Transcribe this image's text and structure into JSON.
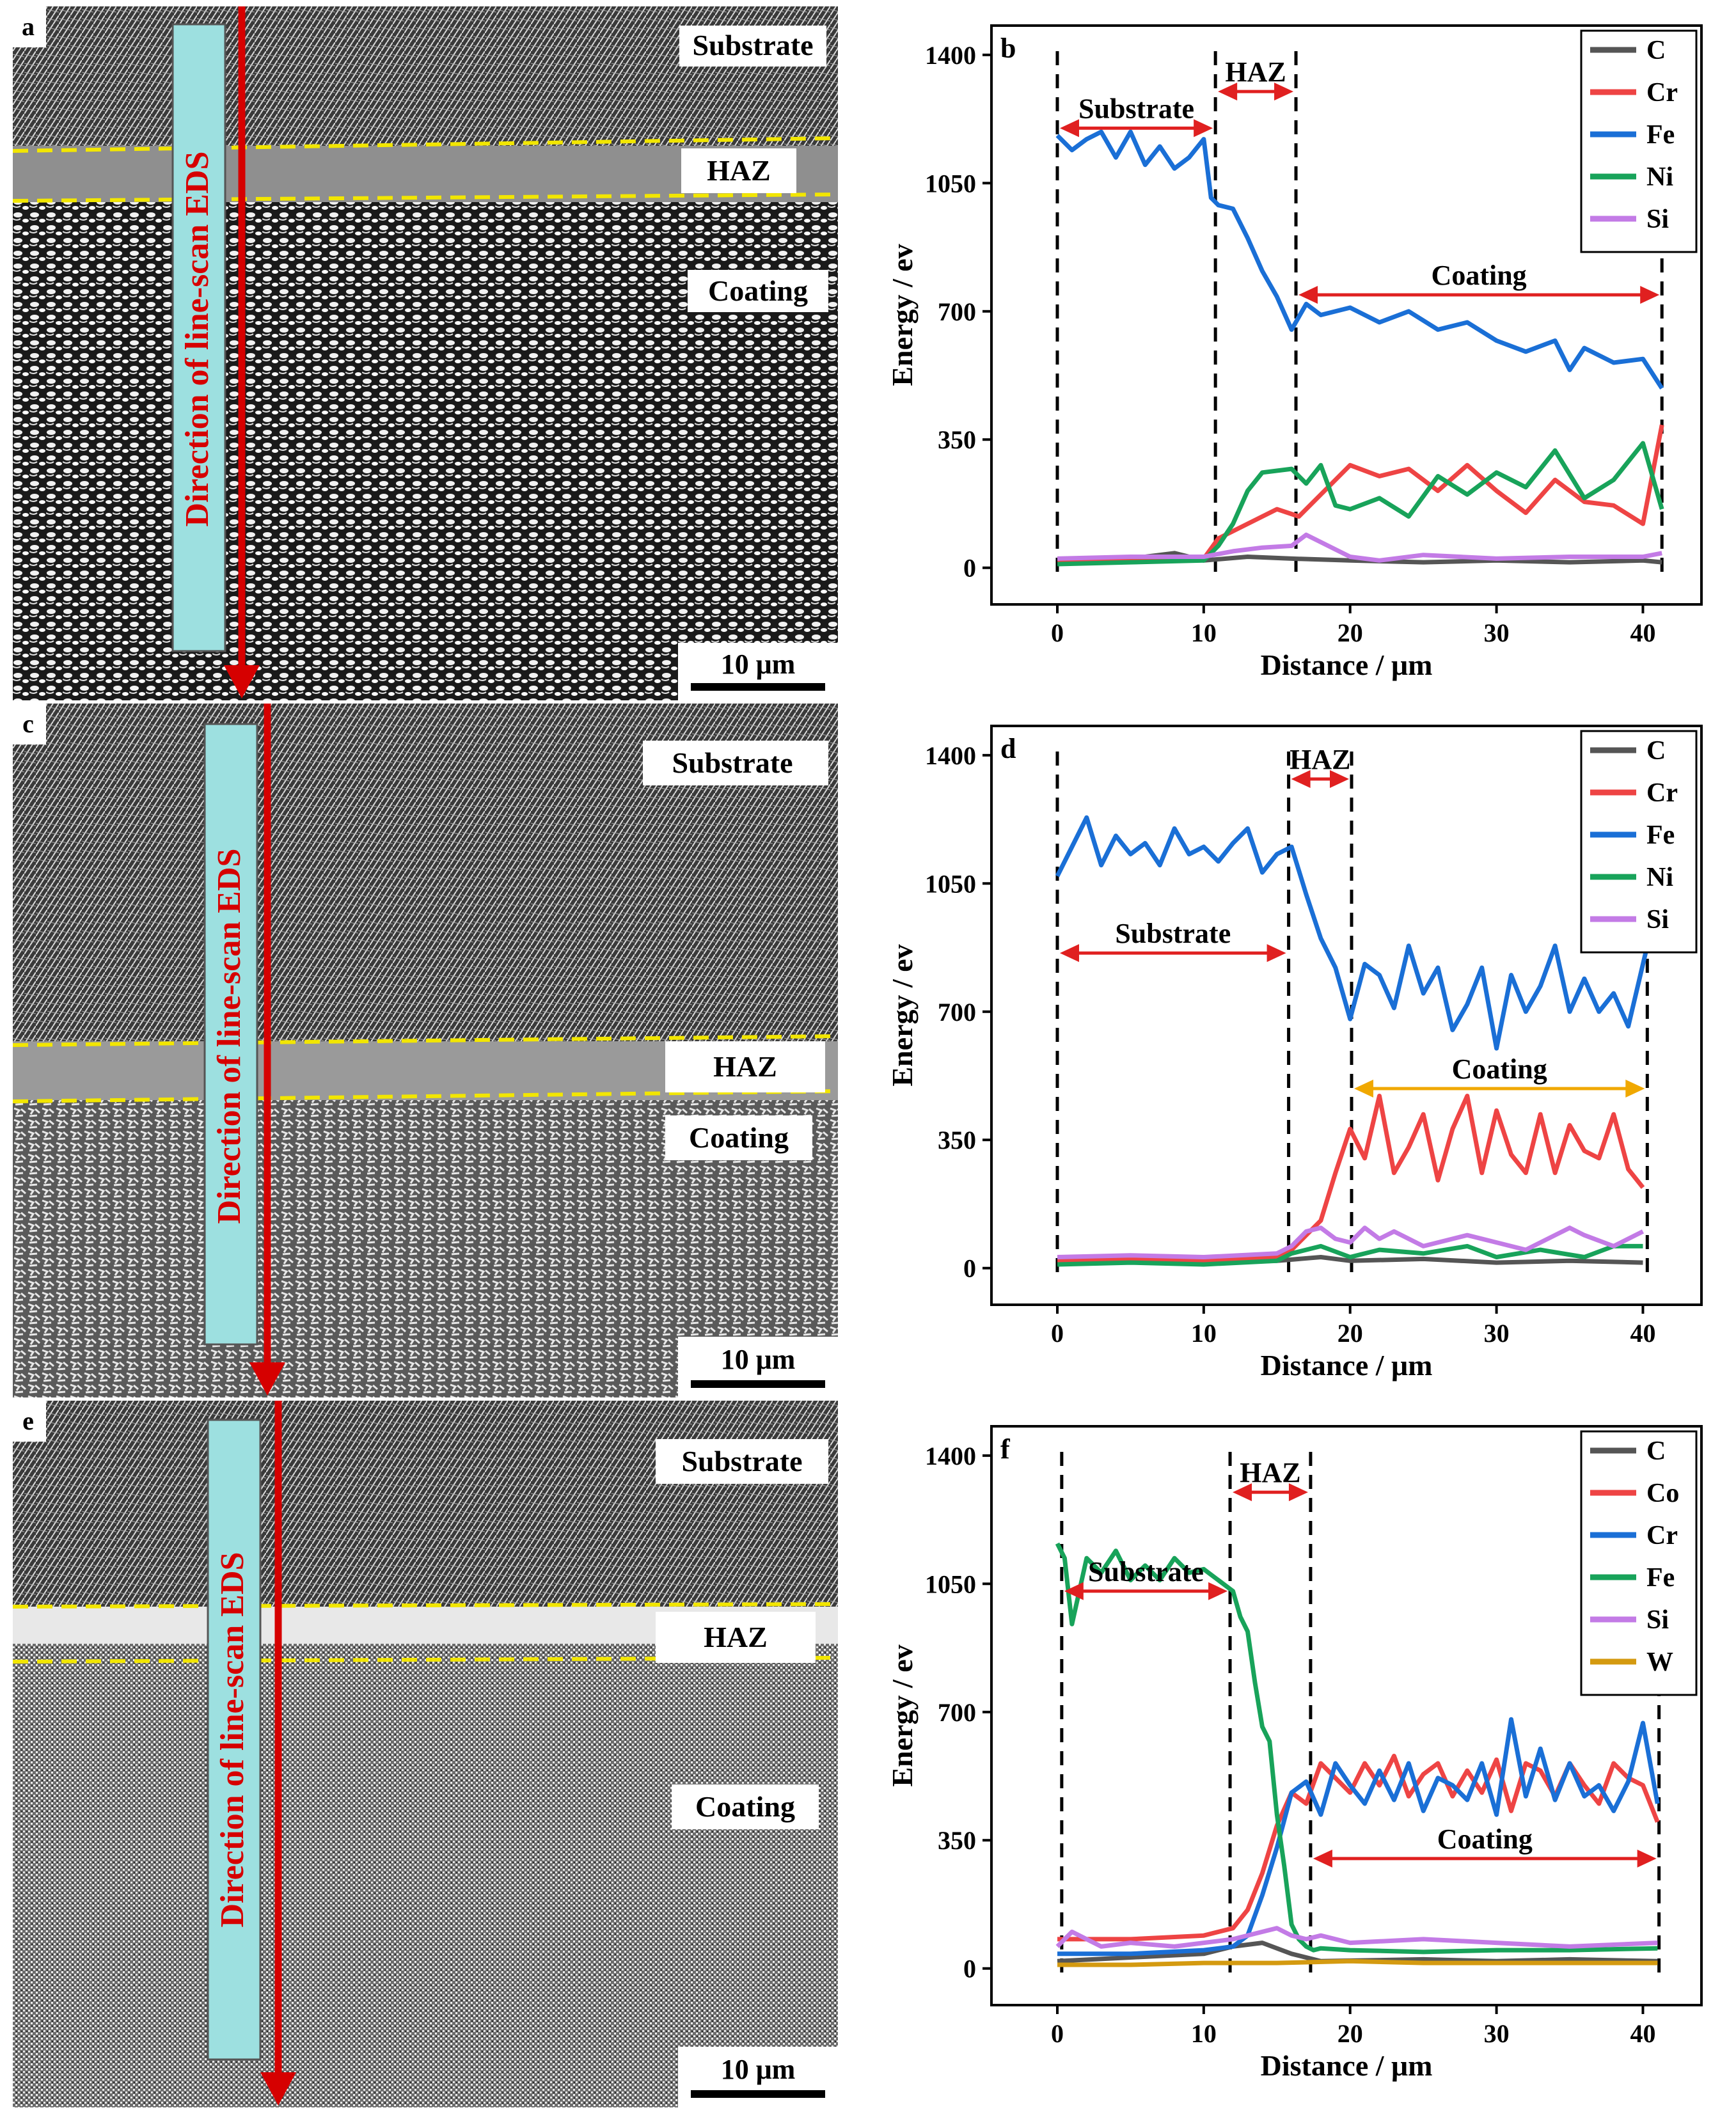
{
  "micrographs": [
    {
      "panel": "a",
      "top_label": "Substrate",
      "mid_label": "HAZ",
      "bot_label": "Coating",
      "scan_label": "Direction of line-scan EDS",
      "scale_text": "10 μm"
    },
    {
      "panel": "c",
      "top_label": "Substrate",
      "mid_label": "HAZ",
      "bot_label": "Coating",
      "scan_label": "Direction of line-scan EDS",
      "scale_text": "10 μm"
    },
    {
      "panel": "e",
      "top_label": "Substrate",
      "mid_label": "HAZ",
      "bot_label": "Coating",
      "scan_label": "Direction of line-scan EDS",
      "scale_text": "10 μm"
    }
  ],
  "colors": {
    "C": "#555555",
    "Cr": "#ee4444",
    "Fe": "#1a6fd6",
    "Ni": "#18a35a",
    "Si": "#c37be6",
    "Co": "#ee4444",
    "Cr_f": "#1a6fd6",
    "Fe_f": "#18a35a",
    "W": "#d49a10",
    "arrow_red": "#e02020",
    "arrow_orange": "#f0a800",
    "scan_arrow": "#d60000",
    "scan_box": "#9de0e0",
    "haz_line": "#f2e600"
  },
  "chart_data": [
    {
      "panel": "b",
      "type": "line",
      "xlabel": "Distance / μm",
      "ylabel": "Energy / ev",
      "xlim": [
        -4.5,
        44
      ],
      "ylim": [
        -100,
        1480
      ],
      "xticks": [
        0,
        10,
        20,
        30,
        40
      ],
      "yticks": [
        0,
        350,
        700,
        1050,
        1400
      ],
      "dividers": [
        0,
        10.8,
        16.3,
        41.3
      ],
      "annotations": [
        {
          "text": "Substrate",
          "x1": 0,
          "x2": 10.8,
          "y": 1200,
          "color": "#e02020"
        },
        {
          "text": "HAZ",
          "x1": 10.8,
          "x2": 16.3,
          "y": 1300,
          "color": "#e02020"
        },
        {
          "text": "Coating",
          "x1": 16.3,
          "x2": 41.3,
          "y": 745,
          "color": "#e02020"
        }
      ],
      "legend": "top-right",
      "series": [
        {
          "name": "C",
          "color": "#555555",
          "x": [
            0,
            5,
            8,
            10,
            13,
            16,
            20,
            25,
            30,
            35,
            40,
            41.3
          ],
          "y": [
            15,
            25,
            40,
            20,
            30,
            25,
            20,
            15,
            20,
            15,
            20,
            15
          ]
        },
        {
          "name": "Cr",
          "color": "#ee4444",
          "x": [
            0,
            5,
            10,
            11,
            13,
            15,
            16.5,
            18,
            20,
            22,
            24,
            26,
            28,
            30,
            32,
            34,
            36,
            38,
            40,
            41.3
          ],
          "y": [
            20,
            20,
            25,
            80,
            120,
            160,
            140,
            200,
            280,
            250,
            270,
            210,
            280,
            210,
            150,
            240,
            180,
            170,
            120,
            390
          ]
        },
        {
          "name": "Fe",
          "color": "#1a6fd6",
          "x": [
            0,
            1,
            2,
            3,
            4,
            5,
            6,
            7,
            8,
            9,
            10,
            10.5,
            11,
            12,
            13,
            14,
            15,
            16,
            17,
            18,
            20,
            22,
            24,
            26,
            28,
            30,
            32,
            34,
            35,
            36,
            38,
            40,
            41.3
          ],
          "y": [
            1180,
            1140,
            1170,
            1190,
            1120,
            1190,
            1100,
            1150,
            1090,
            1120,
            1170,
            1010,
            990,
            980,
            900,
            810,
            740,
            650,
            720,
            690,
            710,
            670,
            700,
            650,
            670,
            620,
            590,
            620,
            540,
            600,
            560,
            570,
            490
          ]
        },
        {
          "name": "Ni",
          "color": "#18a35a",
          "x": [
            0,
            5,
            10,
            11,
            12,
            13,
            14,
            16,
            17,
            18,
            19,
            20,
            22,
            24,
            26,
            28,
            30,
            32,
            34,
            36,
            38,
            40,
            41.3
          ],
          "y": [
            10,
            15,
            20,
            60,
            120,
            210,
            260,
            270,
            230,
            280,
            170,
            160,
            190,
            140,
            250,
            200,
            260,
            220,
            320,
            190,
            240,
            340,
            160
          ]
        },
        {
          "name": "Si",
          "color": "#c37be6",
          "x": [
            0,
            5,
            10,
            12,
            14,
            16,
            17,
            18,
            20,
            22,
            25,
            30,
            35,
            40,
            41.3
          ],
          "y": [
            25,
            30,
            30,
            45,
            55,
            60,
            90,
            70,
            30,
            20,
            35,
            25,
            30,
            30,
            40
          ]
        }
      ]
    },
    {
      "panel": "d",
      "type": "line",
      "xlabel": "Distance / μm",
      "ylabel": "Energy / ev",
      "xlim": [
        -4.5,
        44
      ],
      "ylim": [
        -100,
        1480
      ],
      "xticks": [
        0,
        10,
        20,
        30,
        40
      ],
      "yticks": [
        0,
        350,
        700,
        1050,
        1400
      ],
      "dividers": [
        0,
        15.8,
        20.1,
        40.3
      ],
      "annotations": [
        {
          "text": "HAZ",
          "x1": 15.8,
          "x2": 20.1,
          "y": 1335,
          "color": "#e02020"
        },
        {
          "text": "Substrate",
          "x1": 0,
          "x2": 15.8,
          "y": 860,
          "color": "#e02020"
        },
        {
          "text": "Coating",
          "x1": 20.1,
          "x2": 40.3,
          "y": 490,
          "color": "#f0a800"
        }
      ],
      "legend": "top-right",
      "series": [
        {
          "name": "C",
          "color": "#555555",
          "x": [
            0,
            5,
            10,
            15,
            18,
            20,
            25,
            30,
            35,
            40
          ],
          "y": [
            15,
            20,
            15,
            20,
            30,
            20,
            25,
            15,
            20,
            15
          ]
        },
        {
          "name": "Cr",
          "color": "#ee4444",
          "x": [
            0,
            5,
            10,
            15,
            16,
            17,
            18,
            19,
            20,
            21,
            22,
            23,
            24,
            25,
            26,
            27,
            28,
            29,
            30,
            31,
            32,
            33,
            34,
            35,
            36,
            37,
            38,
            39,
            40
          ],
          "y": [
            20,
            25,
            20,
            30,
            50,
            90,
            130,
            260,
            380,
            300,
            470,
            260,
            330,
            420,
            240,
            380,
            470,
            260,
            430,
            310,
            260,
            420,
            260,
            390,
            320,
            300,
            420,
            270,
            220
          ]
        },
        {
          "name": "Fe",
          "color": "#1a6fd6",
          "x": [
            0,
            1,
            2,
            3,
            4,
            5,
            6,
            7,
            8,
            9,
            10,
            11,
            12,
            13,
            14,
            15,
            16,
            17,
            18,
            19,
            20,
            21,
            22,
            23,
            24,
            25,
            26,
            27,
            28,
            29,
            30,
            31,
            32,
            33,
            34,
            35,
            36,
            37,
            38,
            39,
            40.3
          ],
          "y": [
            1070,
            1150,
            1230,
            1100,
            1180,
            1130,
            1160,
            1100,
            1200,
            1130,
            1150,
            1110,
            1160,
            1200,
            1080,
            1130,
            1150,
            1020,
            900,
            820,
            680,
            830,
            800,
            710,
            880,
            750,
            820,
            650,
            720,
            820,
            600,
            800,
            700,
            770,
            880,
            700,
            790,
            700,
            750,
            660,
            880
          ]
        },
        {
          "name": "Ni",
          "color": "#18a35a",
          "x": [
            0,
            5,
            10,
            15,
            16,
            18,
            20,
            22,
            25,
            28,
            30,
            33,
            36,
            38,
            40
          ],
          "y": [
            10,
            15,
            10,
            20,
            40,
            60,
            30,
            50,
            40,
            60,
            30,
            50,
            30,
            60,
            60
          ]
        },
        {
          "name": "Si",
          "color": "#c37be6",
          "x": [
            0,
            5,
            10,
            15,
            16,
            17,
            18,
            19,
            20,
            21,
            22,
            23,
            25,
            28,
            30,
            32,
            35,
            36,
            38,
            40
          ],
          "y": [
            30,
            35,
            30,
            40,
            60,
            100,
            110,
            80,
            70,
            110,
            80,
            100,
            60,
            90,
            70,
            50,
            110,
            90,
            60,
            100
          ]
        }
      ]
    },
    {
      "panel": "f",
      "type": "line",
      "xlabel": "Distance / μm",
      "ylabel": "Energy / ev",
      "xlim": [
        -4.5,
        44
      ],
      "ylim": [
        -100,
        1480
      ],
      "xticks": [
        0,
        10,
        20,
        30,
        40
      ],
      "yticks": [
        0,
        350,
        700,
        1050,
        1400
      ],
      "dividers": [
        0.3,
        11.8,
        17.3,
        41.1
      ],
      "annotations": [
        {
          "text": "HAZ",
          "x1": 11.8,
          "x2": 17.3,
          "y": 1300,
          "color": "#e02020"
        },
        {
          "text": "Substrate",
          "x1": 0.3,
          "x2": 11.8,
          "y": 1030,
          "color": "#e02020"
        },
        {
          "text": "Coating",
          "x1": 17.3,
          "x2": 41.1,
          "y": 300,
          "color": "#e02020"
        }
      ],
      "legend": "top-right",
      "series": [
        {
          "name": "C",
          "color": "#555555",
          "x": [
            0,
            5,
            10,
            12,
            14,
            16,
            18,
            25,
            30,
            35,
            41
          ],
          "y": [
            20,
            30,
            40,
            60,
            70,
            40,
            20,
            25,
            20,
            25,
            20
          ]
        },
        {
          "name": "Co",
          "color": "#ee4444",
          "x": [
            0,
            5,
            10,
            12,
            13,
            14,
            15,
            16,
            17,
            18,
            19,
            20,
            21,
            22,
            23,
            24,
            25,
            26,
            27,
            28,
            29,
            30,
            31,
            32,
            33,
            34,
            35,
            36,
            37,
            38,
            39,
            40,
            41
          ],
          "y": [
            80,
            80,
            90,
            110,
            160,
            260,
            390,
            480,
            450,
            560,
            520,
            480,
            560,
            500,
            580,
            470,
            530,
            560,
            470,
            540,
            480,
            570,
            430,
            560,
            540,
            470,
            560,
            500,
            450,
            560,
            520,
            500,
            400
          ]
        },
        {
          "name": "Cr",
          "color": "#1a6fd6",
          "x": [
            0,
            5,
            10,
            12,
            13,
            14,
            15,
            16,
            17,
            18,
            19,
            20,
            21,
            22,
            23,
            24,
            25,
            26,
            27,
            28,
            29,
            30,
            31,
            32,
            33,
            34,
            35,
            36,
            37,
            38,
            39,
            40,
            41
          ],
          "y": [
            40,
            40,
            50,
            60,
            90,
            200,
            330,
            480,
            510,
            420,
            560,
            500,
            450,
            540,
            460,
            560,
            430,
            520,
            500,
            460,
            560,
            420,
            680,
            470,
            600,
            460,
            560,
            470,
            500,
            430,
            510,
            670,
            450
          ]
        },
        {
          "name": "Fe",
          "color": "#18a35a",
          "x": [
            0,
            0.5,
            1,
            2,
            3,
            4,
            5,
            6,
            7,
            8,
            9,
            10,
            11,
            12,
            12.5,
            13,
            13.5,
            14,
            14.5,
            15,
            15.5,
            16,
            16.5,
            17,
            17.5,
            18,
            20,
            25,
            30,
            35,
            41
          ],
          "y": [
            1160,
            1120,
            940,
            1120,
            1080,
            1140,
            1060,
            1100,
            1060,
            1120,
            1080,
            1090,
            1060,
            1030,
            960,
            920,
            780,
            660,
            620,
            420,
            280,
            120,
            80,
            60,
            50,
            55,
            50,
            45,
            50,
            50,
            55
          ]
        },
        {
          "name": "Si",
          "color": "#c37be6",
          "x": [
            0,
            1,
            3,
            5,
            8,
            10,
            12,
            14,
            15,
            16,
            17,
            18,
            20,
            25,
            30,
            35,
            41
          ],
          "y": [
            60,
            100,
            60,
            70,
            60,
            70,
            80,
            100,
            110,
            90,
            80,
            90,
            70,
            80,
            70,
            60,
            70
          ]
        },
        {
          "name": "W",
          "color": "#d49a10",
          "x": [
            0,
            5,
            10,
            15,
            20,
            25,
            30,
            35,
            41
          ],
          "y": [
            10,
            10,
            15,
            15,
            20,
            15,
            15,
            15,
            15
          ]
        }
      ]
    }
  ]
}
